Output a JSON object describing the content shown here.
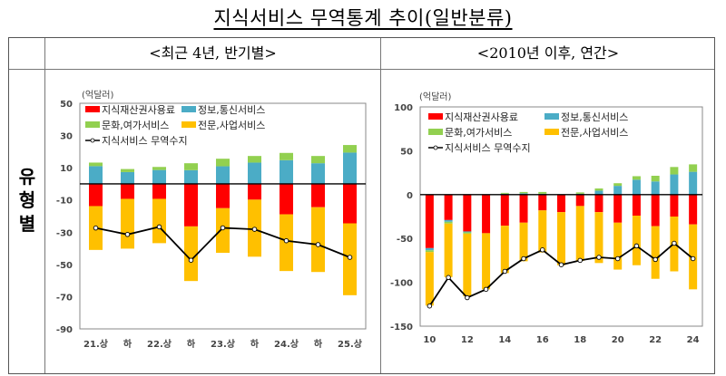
{
  "page": {
    "title": "지식서비스 무역통계 추이(일반분류)",
    "table": {
      "header_left": "<최근 4년, 반기별>",
      "header_right": "<2010년 이후, 연간>",
      "row_label": "유\n형\n별"
    }
  },
  "colors": {
    "ip": "#FF0000",
    "ict": "#4BACC6",
    "culture": "#92D050",
    "professional": "#FFC000",
    "balance_line": "#000000"
  },
  "chart_data": [
    {
      "type": "bar",
      "stacked": true,
      "title": "<최근 4년, 반기별>",
      "unit_label": "(억달러)",
      "xlabel": "",
      "ylabel": "",
      "ylim": [
        -90,
        50
      ],
      "yticks": [
        50,
        30,
        10,
        -10,
        -30,
        -50,
        -70,
        -90
      ],
      "grid": false,
      "legend_position": "top-left",
      "categories": [
        "21.상",
        "하",
        "22.상",
        "하",
        "23.상",
        "하",
        "24.상",
        "하",
        "25.상"
      ],
      "series": [
        {
          "name": "지식재산권사용료",
          "color_key": "ip",
          "kind": "bar",
          "values": [
            -13.8,
            -9.3,
            -9.3,
            -26.4,
            -15.1,
            -9.8,
            -18.9,
            -14.5,
            -24.5
          ]
        },
        {
          "name": "정보,통신서비스",
          "color_key": "ict",
          "kind": "bar",
          "values": [
            11.0,
            7.3,
            8.6,
            8.5,
            10.9,
            13.2,
            14.7,
            12.8,
            19.4
          ]
        },
        {
          "name": "문화,여가서비스",
          "color_key": "culture",
          "kind": "bar",
          "values": [
            2.2,
            1.9,
            1.9,
            4.3,
            4.7,
            4.1,
            4.5,
            4.5,
            4.7
          ]
        },
        {
          "name": "전문,사업서비스",
          "color_key": "professional",
          "kind": "bar",
          "values": [
            -27.2,
            -30.9,
            -27.5,
            -33.9,
            -27.7,
            -35.4,
            -35.2,
            -40.2,
            -44.6
          ]
        },
        {
          "name": "지식서비스 무역수지",
          "color_key": "balance_line",
          "kind": "line",
          "values": [
            -27.4,
            -31.4,
            -26.7,
            -47.4,
            -27.3,
            -28.2,
            -35.3,
            -37.7,
            -45.6
          ]
        }
      ]
    },
    {
      "type": "bar",
      "stacked": true,
      "title": "<2010년 이후, 연간>",
      "unit_label": "(억달러)",
      "xlabel": "",
      "ylabel": "",
      "ylim": [
        -150,
        100
      ],
      "yticks": [
        100,
        50,
        0,
        -50,
        -100,
        -150
      ],
      "grid": false,
      "legend_position": "top-left",
      "categories": [
        "10",
        "11",
        "12",
        "13",
        "14",
        "15",
        "16",
        "17",
        "18",
        "19",
        "20",
        "21",
        "22",
        "23",
        "24"
      ],
      "tick_labels_shown": [
        "10",
        "",
        "12",
        "",
        "14",
        "",
        "16",
        "",
        "18",
        "",
        "20",
        "",
        "22",
        "",
        "24"
      ],
      "series": [
        {
          "name": "지식재산권사용료",
          "color_key": "ip",
          "kind": "bar",
          "values": [
            -61,
            -29,
            -42,
            -44,
            -35.5,
            -32,
            -18,
            -20,
            -13,
            -20,
            -32,
            -24,
            -36,
            -25,
            -34
          ]
        },
        {
          "name": "정보,통신서비스",
          "color_key": "ict",
          "kind": "bar",
          "values": [
            -2.5,
            -2,
            -1,
            0,
            1,
            1.5,
            1,
            0.3,
            1,
            4.5,
            10,
            17,
            15,
            23,
            26
          ]
        },
        {
          "name": "문화,여가서비스",
          "color_key": "culture",
          "kind": "bar",
          "values": [
            -2,
            -2,
            -1.5,
            0,
            1,
            1.5,
            2,
            0,
            1.5,
            2.5,
            3,
            4,
            6.5,
            8.5,
            8.5
          ]
        },
        {
          "name": "전문,사업서비스",
          "color_key": "professional",
          "kind": "bar",
          "values": [
            -61,
            -61,
            -71.5,
            -64,
            -54,
            -44,
            -48,
            -60.5,
            -62.5,
            -58,
            -53.5,
            -56.5,
            -60,
            -62.5,
            -74
          ]
        },
        {
          "name": "지식서비스 무역수지",
          "color_key": "balance_line",
          "kind": "line",
          "values": [
            -127,
            -94.5,
            -117.5,
            -108,
            -87.5,
            -73,
            -63,
            -80,
            -75,
            -71.5,
            -73,
            -58.5,
            -74,
            -55.5,
            -73
          ]
        }
      ]
    }
  ]
}
